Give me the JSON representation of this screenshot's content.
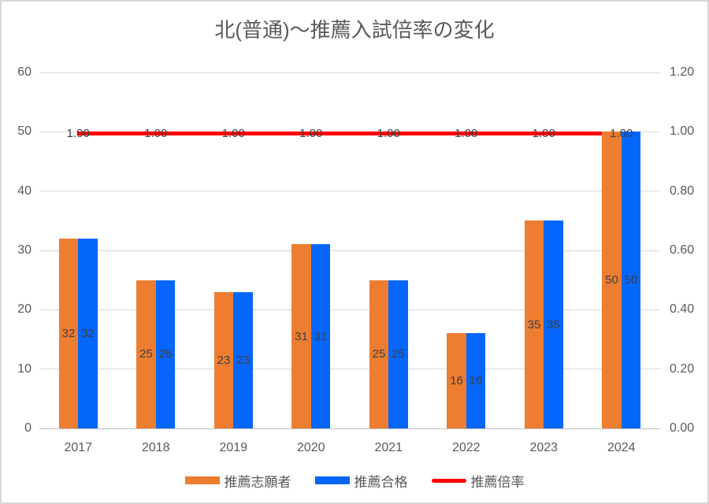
{
  "chart_data": {
    "type": "combo-bar-line",
    "title": "北(普通)～推薦入試倍率の変化",
    "categories": [
      "2017",
      "2018",
      "2019",
      "2020",
      "2021",
      "2022",
      "2023",
      "2024"
    ],
    "series": [
      {
        "key": "applicants",
        "name": "推薦志願者",
        "type": "bar",
        "axis": "left",
        "color": "#ED7D31",
        "values": [
          32,
          25,
          23,
          31,
          25,
          16,
          35,
          50
        ],
        "data_labels": [
          "32",
          "25",
          "23",
          "31",
          "25",
          "16",
          "35",
          "50"
        ]
      },
      {
        "key": "accepted",
        "name": "推薦合格",
        "type": "bar",
        "axis": "left",
        "color": "#0566FB",
        "values": [
          32,
          25,
          23,
          31,
          25,
          16,
          35,
          50
        ],
        "data_labels": [
          "32",
          "25",
          "23",
          "31",
          "25",
          "16",
          "35",
          "50"
        ]
      },
      {
        "key": "ratio",
        "name": "推薦倍率",
        "type": "line",
        "axis": "right",
        "color": "#FF0000",
        "values": [
          1.0,
          1.0,
          1.0,
          1.0,
          1.0,
          1.0,
          1.0,
          1.0
        ],
        "data_labels": [
          "1.00",
          "1.00",
          "1.00",
          "1.00",
          "1.00",
          "1.00",
          "1.00",
          "1.00"
        ]
      }
    ],
    "left_axis": {
      "min": 0,
      "max": 60,
      "step": 10,
      "tick_labels": [
        "0",
        "10",
        "20",
        "30",
        "40",
        "50",
        "60"
      ]
    },
    "right_axis": {
      "min": 0,
      "max": 1.2,
      "step": 0.2,
      "tick_labels": [
        "0.00",
        "0.20",
        "0.40",
        "0.60",
        "0.80",
        "1.00",
        "1.20"
      ]
    },
    "grid": true,
    "legend_position": "bottom"
  },
  "colors": {
    "gridline": "#D9D9D9",
    "axis_line": "#BFBFBF",
    "border": "#D9D9D9",
    "title_text": "#595959",
    "axis_text": "#595959",
    "data_label_text": "#404040",
    "background": "#FFFFFF"
  }
}
